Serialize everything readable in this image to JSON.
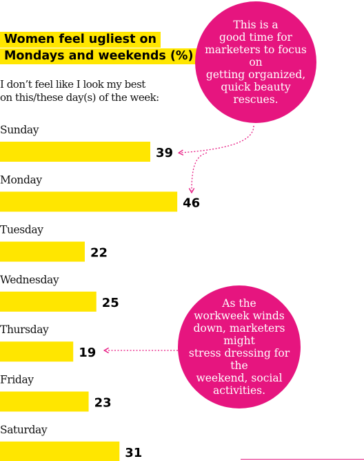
{
  "title_lines": [
    "Women feel ugliest on",
    "Mondays and weekends (%)"
  ],
  "subtitle_lines": [
    "I don’t feel like I look my best",
    "on this/these day(s) of the week:"
  ],
  "callouts": [
    {
      "lines": [
        "This is a",
        "good time for",
        "marketers to focus on",
        "getting organized,",
        "quick beauty",
        "rescues."
      ]
    },
    {
      "lines": [
        "As the",
        "workweek winds",
        "down, marketers might",
        "stress dressing for the",
        "weekend, social",
        "activities."
      ]
    }
  ],
  "colors": {
    "bar": "#ffe600",
    "accent": "#e6157f",
    "text": "#111111"
  },
  "chart_data": {
    "type": "bar",
    "orientation": "horizontal",
    "categories": [
      "Sunday",
      "Monday",
      "Tuesday",
      "Wednesday",
      "Thursday",
      "Friday",
      "Saturday"
    ],
    "values": [
      39,
      46,
      22,
      25,
      19,
      23,
      31
    ],
    "title": "Women feel ugliest on Mondays and weekends (%)",
    "xlabel": "",
    "ylabel": "",
    "grid": false
  }
}
